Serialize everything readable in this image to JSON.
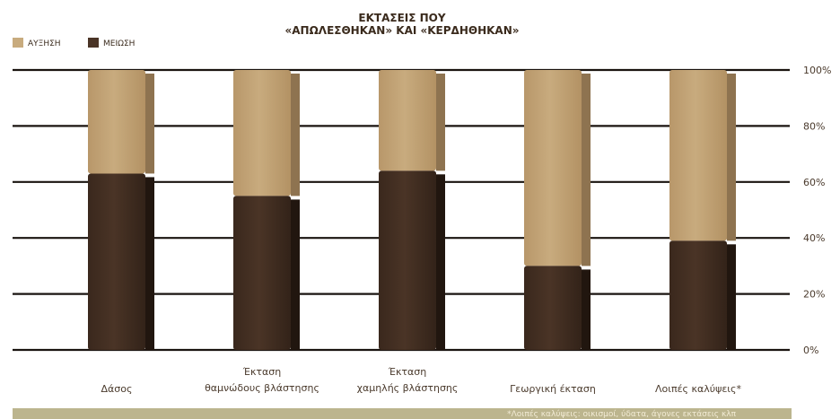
{
  "chart_data": {
    "type": "bar",
    "stacked": true,
    "percent": true,
    "title_lines": [
      "ΕΚΤΑΣΕΙΣ ΠΟΥ",
      "«ΑΠΩΛΕΣΘΗΚΑΝ» ΚΑΙ «ΚΕΡΔΗΘΗΚΑΝ»"
    ],
    "categories": [
      [
        "Δάσος"
      ],
      [
        "Έκταση",
        "θαμνώδους βλάστησης"
      ],
      [
        "Έκταση",
        "χαμηλής βλάστησης"
      ],
      [
        "Γεωργική έκταση"
      ],
      [
        "Λοιπές καλύψεις*"
      ]
    ],
    "series": [
      {
        "name": "ΜΕΙΩΣΗ",
        "values": [
          63,
          55,
          64,
          30,
          39
        ]
      },
      {
        "name": "ΑΥΞΗΣΗ",
        "values": [
          37,
          45,
          36,
          70,
          61
        ]
      }
    ],
    "ylim": [
      0,
      100
    ],
    "yticks": [
      "0%",
      "20%",
      "40%",
      "60%",
      "80%",
      "100%"
    ],
    "grid": true,
    "legend_position": "top-left",
    "footnote": "*Λοιπές καλύψεις: οικισμοί, ύδατα, άγονες εκτάσεις κλπ"
  },
  "colors": {
    "increase": "#c8ab7e",
    "decrease": "#4a3426",
    "gridline": "#1a1410",
    "footer_band": "#bcb58e"
  }
}
